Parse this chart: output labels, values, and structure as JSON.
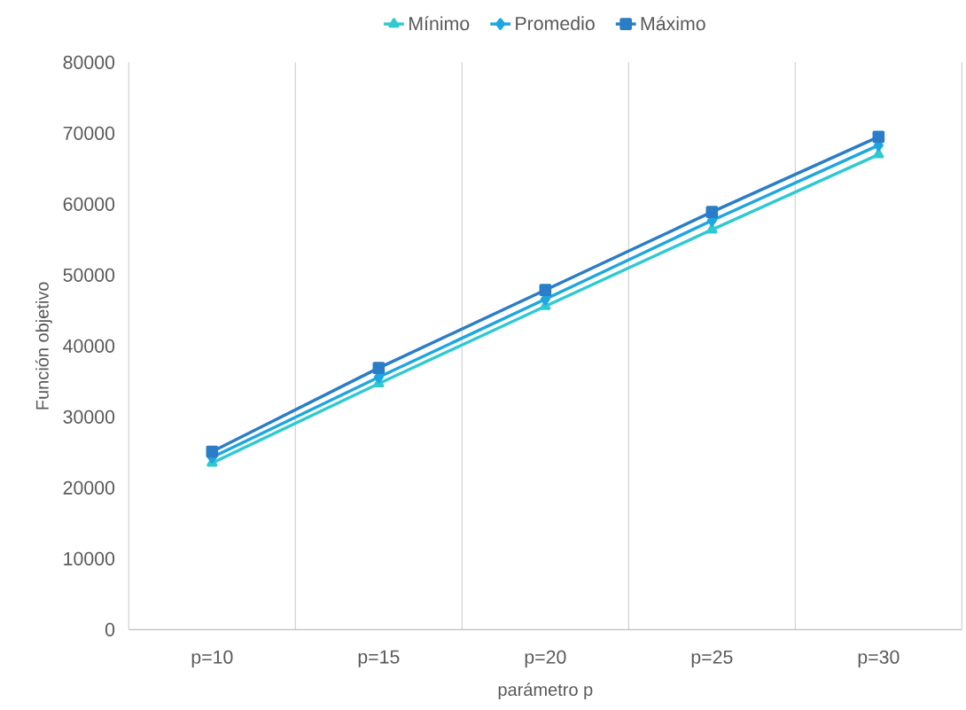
{
  "chart_data": {
    "type": "line",
    "xlabel": "parámetro  p",
    "ylabel": "Función objetivo",
    "categories": [
      "p=10",
      "p=15",
      "p=20",
      "p=25",
      "p=30"
    ],
    "series": [
      {
        "name": "Mínimo",
        "color": "#2ec9d3",
        "marker": "triangle",
        "values": [
          23500,
          34700,
          45600,
          56400,
          67000
        ]
      },
      {
        "name": "Promedio",
        "color": "#1ea6e0",
        "marker": "diamond",
        "values": [
          24300,
          35600,
          46600,
          57700,
          68300
        ]
      },
      {
        "name": "Máximo",
        "color": "#2a7dc6",
        "marker": "square",
        "values": [
          25100,
          36900,
          47900,
          58900,
          69500
        ]
      }
    ],
    "ylim": [
      0,
      80000
    ],
    "yticks": [
      0,
      10000,
      20000,
      30000,
      40000,
      50000,
      60000,
      70000,
      80000
    ],
    "grid": "x",
    "legend": "top",
    "line_style": "solid"
  }
}
